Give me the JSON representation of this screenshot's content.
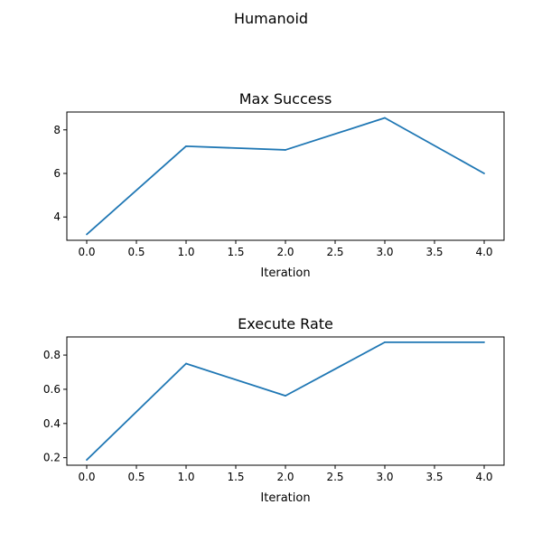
{
  "figure": {
    "suptitle": "Humanoid"
  },
  "chart_data": [
    {
      "type": "line",
      "title": "Max Success",
      "xlabel": "Iteration",
      "ylabel": "",
      "x": [
        0,
        1,
        2,
        3,
        4
      ],
      "series": [
        {
          "values": [
            3.2,
            7.25,
            7.08,
            8.55,
            6.0
          ],
          "color": "#1f77b4"
        }
      ],
      "xlim": [
        -0.2,
        4.2
      ],
      "ylim": [
        2.93,
        8.82
      ],
      "xticks": [
        0.0,
        0.5,
        1.0,
        1.5,
        2.0,
        2.5,
        3.0,
        3.5,
        4.0
      ],
      "xtick_labels": [
        "0.0",
        "0.5",
        "1.0",
        "1.5",
        "2.0",
        "2.5",
        "3.0",
        "3.5",
        "4.0"
      ],
      "yticks": [
        4,
        6,
        8
      ],
      "ytick_labels": [
        "4",
        "6",
        "8"
      ],
      "grid": false
    },
    {
      "type": "line",
      "title": "Execute Rate",
      "xlabel": "Iteration",
      "ylabel": "",
      "x": [
        0,
        1,
        2,
        3,
        4
      ],
      "series": [
        {
          "values": [
            0.187,
            0.75,
            0.562,
            0.875,
            0.875
          ],
          "color": "#1f77b4"
        }
      ],
      "xlim": [
        -0.2,
        4.2
      ],
      "ylim": [
        0.156,
        0.906
      ],
      "xticks": [
        0.0,
        0.5,
        1.0,
        1.5,
        2.0,
        2.5,
        3.0,
        3.5,
        4.0
      ],
      "xtick_labels": [
        "0.0",
        "0.5",
        "1.0",
        "1.5",
        "2.0",
        "2.5",
        "3.0",
        "3.5",
        "4.0"
      ],
      "yticks": [
        0.2,
        0.4,
        0.6,
        0.8
      ],
      "ytick_labels": [
        "0.2",
        "0.4",
        "0.6",
        "0.8"
      ],
      "grid": false
    }
  ]
}
